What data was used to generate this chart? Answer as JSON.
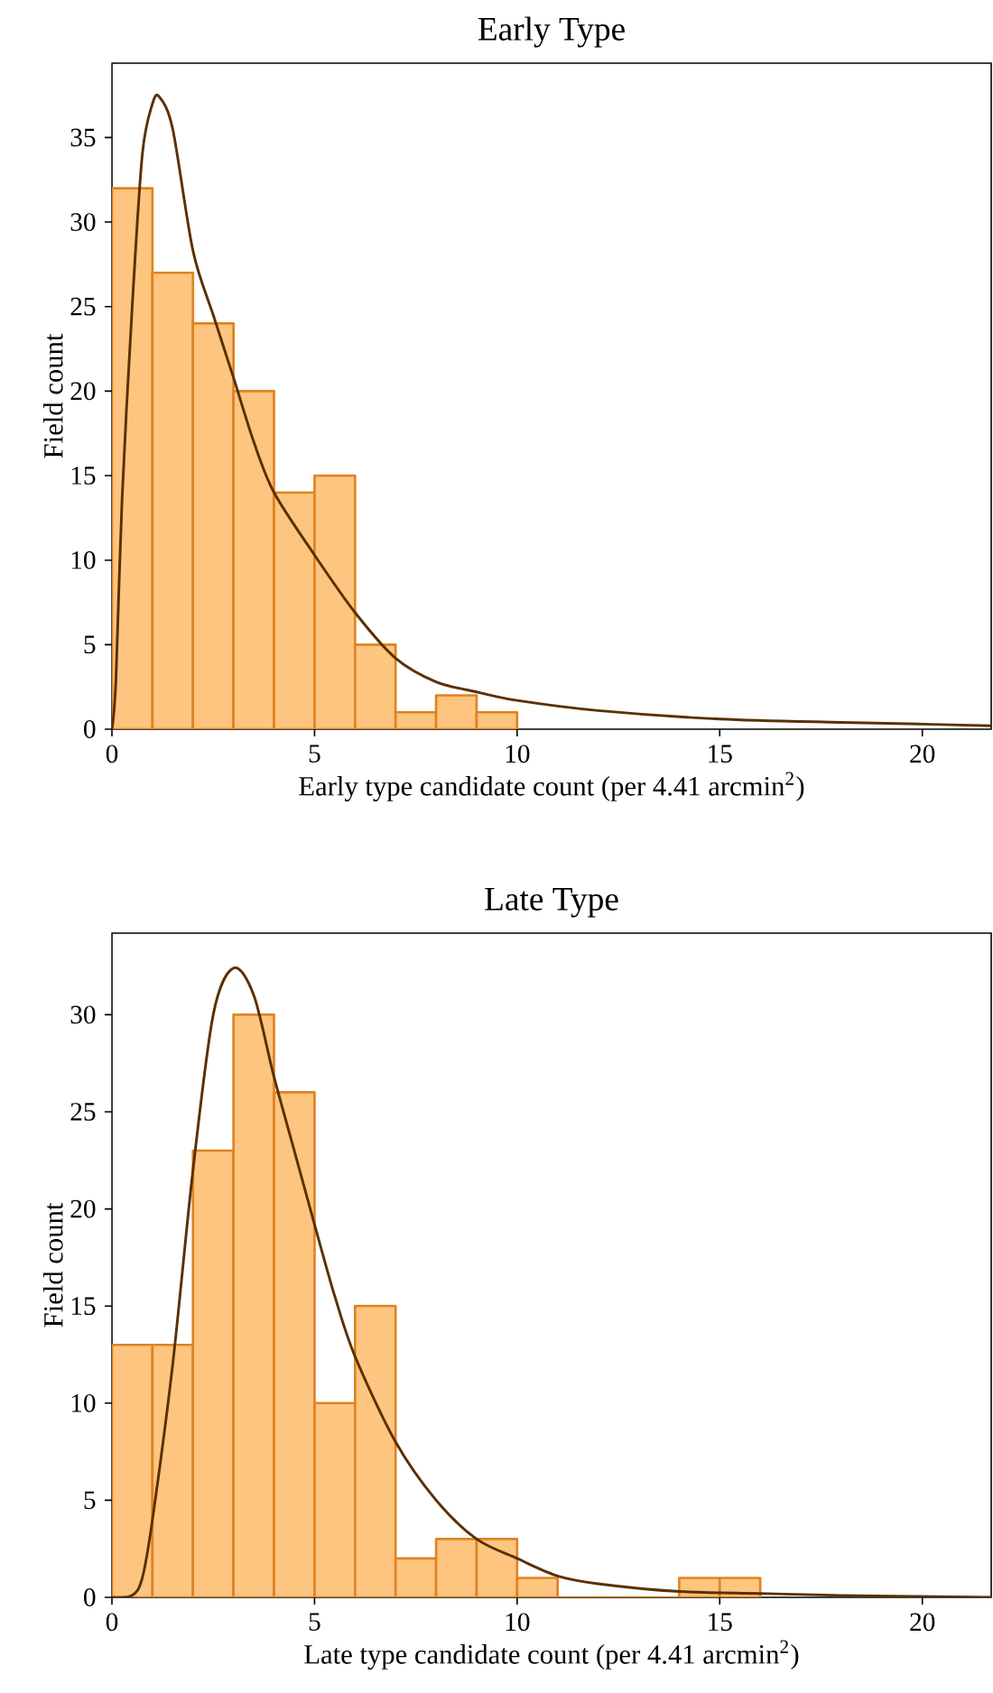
{
  "chart_data": [
    {
      "type": "histogram",
      "title": "Early Type",
      "xlabel": "Early type candidate count (per 4.41 arcmin$^{2}$)",
      "ylabel": "Field count",
      "xlim": [
        0,
        21.7
      ],
      "ylim": [
        0,
        39.4
      ],
      "xticks": [
        0,
        5,
        10,
        15,
        20
      ],
      "yticks": [
        0,
        5,
        10,
        15,
        20,
        25,
        30,
        35
      ],
      "color": "#fdc57f",
      "bins": [
        0,
        1,
        2,
        3,
        4,
        5,
        6,
        7,
        8,
        9,
        10
      ],
      "values": [
        32,
        27,
        24,
        20,
        14,
        15,
        5,
        1,
        2,
        1
      ],
      "series": [
        {
          "type": "line",
          "color": "#5a3000",
          "x": [
            0,
            0.1,
            0.25,
            0.5,
            0.75,
            1.0,
            1.17,
            1.5,
            2,
            2.5,
            3,
            3.5,
            4,
            5,
            6,
            7,
            8,
            9,
            10,
            12,
            15,
            18,
            20,
            21.7
          ],
          "values": [
            0,
            3,
            13.6,
            25,
            34,
            37,
            37.4,
            35.5,
            28.3,
            24.5,
            20.8,
            17,
            14,
            10.3,
            6.9,
            4.2,
            2.8,
            2.2,
            1.7,
            1.1,
            0.6,
            0.4,
            0.3,
            0.2
          ]
        }
      ]
    },
    {
      "type": "histogram",
      "title": "Late Type",
      "xlabel": "Late type candidate count (per 4.41 arcmin$^{2}$)",
      "ylabel": "Field count",
      "xlim": [
        0,
        21.7
      ],
      "ylim": [
        0,
        34.2
      ],
      "xticks": [
        0,
        5,
        10,
        15,
        20
      ],
      "yticks": [
        0,
        5,
        10,
        15,
        20,
        25,
        30
      ],
      "color": "#fdc57f",
      "bins": [
        0,
        1,
        2,
        3,
        4,
        5,
        6,
        7,
        8,
        9,
        10,
        11,
        12,
        13,
        14,
        15,
        16
      ],
      "values": [
        13,
        13,
        23,
        30,
        26,
        10,
        15,
        2,
        3,
        3,
        1,
        0,
        0,
        0,
        1,
        1
      ],
      "series": [
        {
          "type": "line",
          "color": "#5a3000",
          "x": [
            0,
            0.5,
            0.75,
            1,
            1.5,
            2,
            2.5,
            3,
            3.5,
            4,
            4.5,
            5,
            5.5,
            6,
            7,
            8,
            9,
            10,
            11,
            12,
            14,
            16,
            18,
            21.7
          ],
          "values": [
            0,
            0.1,
            1,
            4,
            12,
            22,
            30,
            32.4,
            31,
            26.8,
            23,
            19.2,
            15.5,
            12.4,
            8,
            5,
            3,
            2,
            1.1,
            0.7,
            0.3,
            0.2,
            0.1,
            0
          ]
        }
      ]
    }
  ]
}
